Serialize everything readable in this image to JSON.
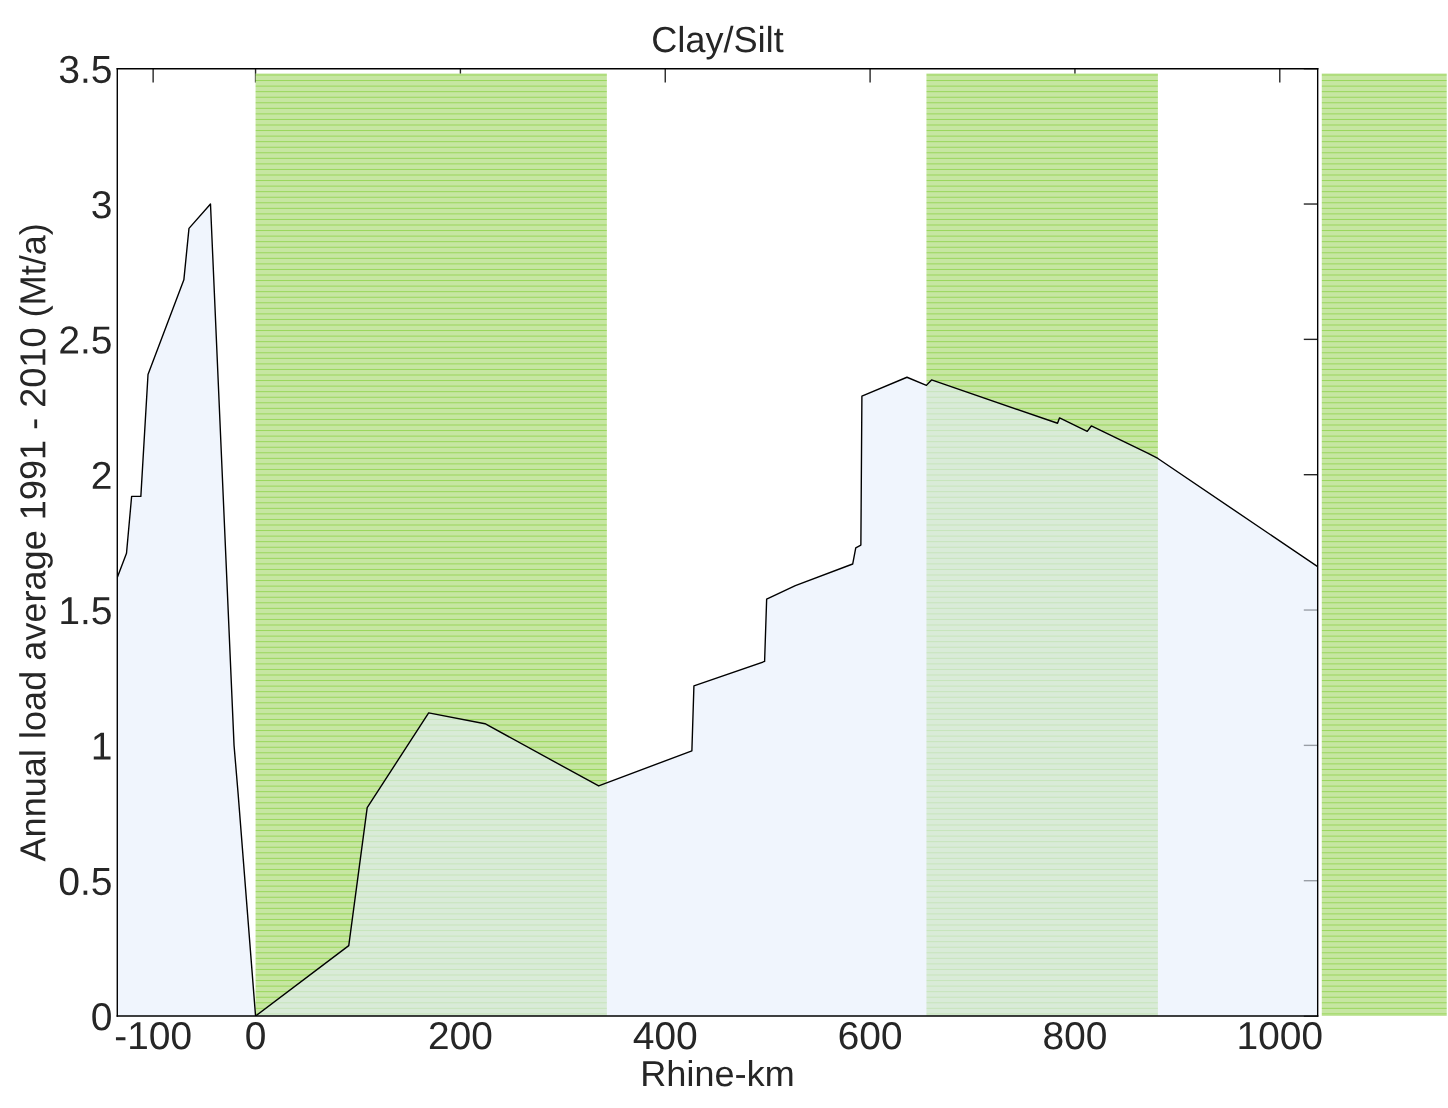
{
  "chart_data": {
    "type": "area",
    "title": "Clay/Silt",
    "xlabel": "Rhine-km",
    "ylabel": "Annual load average 1991 - 2010 (Mt/a)",
    "x": [
      -135,
      -126,
      -121,
      -112,
      -105,
      -70,
      -65,
      -44,
      -21,
      -17,
      0,
      91,
      109,
      169,
      224,
      335,
      426,
      428,
      497,
      499,
      527,
      583,
      586,
      591,
      592,
      636,
      655,
      660,
      783,
      785,
      812,
      816,
      871,
      881,
      1037
    ],
    "series": [
      {
        "color": "#e6eefb",
        "values": [
          1.62,
          1.71,
          1.92,
          1.92,
          2.37,
          2.72,
          2.91,
          3.0,
          1.0,
          0.82,
          0,
          0.26,
          0.77,
          1.12,
          1.08,
          0.85,
          0.98,
          1.22,
          1.31,
          1.54,
          1.59,
          1.67,
          1.73,
          1.74,
          2.29,
          2.36,
          2.33,
          2.35,
          2.19,
          2.21,
          2.16,
          2.18,
          2.08,
          2.06,
          1.66
        ]
      }
    ],
    "xlim": [
      -135,
      1037
    ],
    "ylim": [
      0,
      3.5
    ],
    "xticks": [
      -100,
      0,
      200,
      400,
      600,
      800,
      1000
    ],
    "yticks": [
      0,
      0.5,
      1,
      1.5,
      2,
      2.5,
      3,
      3.5
    ],
    "bands": [
      {
        "axis": "x",
        "from": 0,
        "to": 343,
        "color": "#c6e6a2"
      },
      {
        "axis": "x",
        "from": 655,
        "to": 881,
        "color": "#c6e6a2"
      },
      {
        "axis": "x",
        "from": 1041,
        "to": 1163,
        "color": "#c6e6a2"
      }
    ],
    "grid": false,
    "legend": false
  }
}
